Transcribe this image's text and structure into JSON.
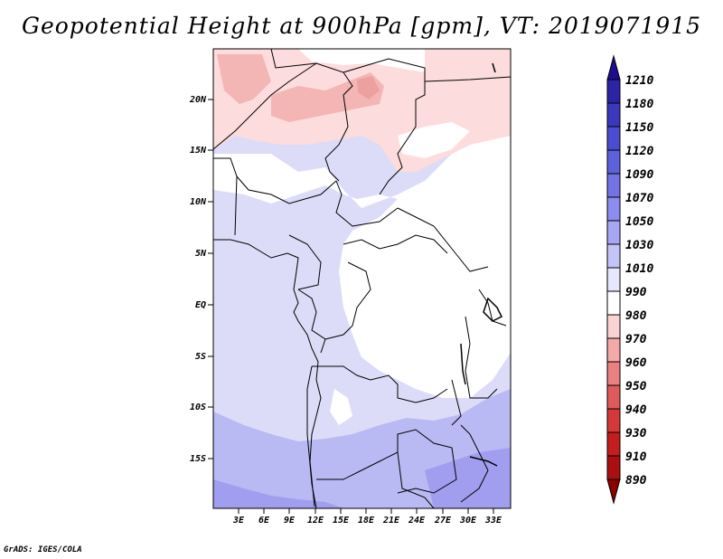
{
  "title": "Geopotential Height at 900hPa [gpm], VT: 2019071915",
  "credit": "GrADS: IGES/COLA",
  "lat_ticks": [
    "20N",
    "15N",
    "10N",
    "5N",
    "EQ",
    "5S",
    "10S",
    "15S"
  ],
  "lon_ticks": [
    "3E",
    "6E",
    "9E",
    "12E",
    "15E",
    "18E",
    "21E",
    "24E",
    "27E",
    "30E",
    "33E"
  ],
  "colorbar": {
    "levels": [
      "1210",
      "1180",
      "1150",
      "1120",
      "1090",
      "1070",
      "1050",
      "1030",
      "1010",
      "990",
      "980",
      "970",
      "960",
      "950",
      "940",
      "930",
      "910",
      "890"
    ],
    "colors": [
      "#1e0e8c",
      "#2d23a6",
      "#3b38bd",
      "#4b4ccf",
      "#5e61dc",
      "#7473e6",
      "#8c8bef",
      "#a7a6f4",
      "#c4c4f9",
      "#e6e6fc",
      "#ffffff",
      "#fbd2d2",
      "#f3a9a9",
      "#e98181",
      "#df5a5a",
      "#d53838",
      "#c41d1d",
      "#ac0f0f",
      "#8b0000"
    ]
  },
  "map_regions": [
    {
      "name": "north-warm-band",
      "color": "#fcdcdc"
    },
    {
      "name": "sahara-core",
      "color": "#f4b5b5"
    },
    {
      "name": "central-white",
      "color": "#ffffff"
    },
    {
      "name": "west-cool",
      "color": "#dcdcf8"
    },
    {
      "name": "south-cool",
      "color": "#b9b9f3"
    },
    {
      "name": "far-south",
      "color": "#a19ef0"
    }
  ]
}
